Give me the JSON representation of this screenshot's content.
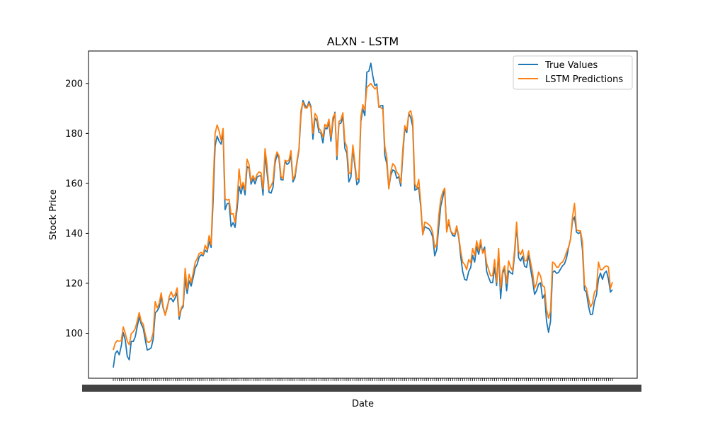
{
  "chart_data": {
    "type": "line",
    "title": "ALXN - LSTM",
    "xlabel": "Date",
    "ylabel": "Stock Price",
    "ylim": [
      82,
      213
    ],
    "yticks": [
      100,
      120,
      140,
      160,
      180,
      200
    ],
    "grid": false,
    "legend_position": "top-right",
    "x_tick_labels_unreadable": true,
    "series": [
      {
        "name": "True Values",
        "color": "#1f77b4",
        "values": [
          86.3,
          91.9,
          93.0,
          91.4,
          94.9,
          100.3,
          97.3,
          90.8,
          89.4,
          96.8,
          96.7,
          98.6,
          102.7,
          106.6,
          103.7,
          102.0,
          97.5,
          93.3,
          93.6,
          94.2,
          97.7,
          108.1,
          109.0,
          110.4,
          114.6,
          110.0,
          107.5,
          110.6,
          113.6,
          114.0,
          112.6,
          114.2,
          116.2,
          105.6,
          109.6,
          110.6,
          122.0,
          115.9,
          121.0,
          118.9,
          122.2,
          126.1,
          127.6,
          130.5,
          131.4,
          131.0,
          133.3,
          132.5,
          136.9,
          134.4,
          153.1,
          175.0,
          178.9,
          176.9,
          175.7,
          180.6,
          149.5,
          151.8,
          152.1,
          142.7,
          144.3,
          142.4,
          149.8,
          158.8,
          155.8,
          159.7,
          155.4,
          166.8,
          166.1,
          159.7,
          161.9,
          159.8,
          162.5,
          163.0,
          163.0,
          155.3,
          171.8,
          164.4,
          156.5,
          156.1,
          158.4,
          167.9,
          171.8,
          169.9,
          161.5,
          161.4,
          168.9,
          167.6,
          168.2,
          171.2,
          160.6,
          162.3,
          168.2,
          173.4,
          187.4,
          193.2,
          191.3,
          190.2,
          192.8,
          190.8,
          177.7,
          186.2,
          185.0,
          180.5,
          180.1,
          176.2,
          182.3,
          181.8,
          184.5,
          176.9,
          184.6,
          188.5,
          169.5,
          183.8,
          184.1,
          186.7,
          174.0,
          172.1,
          160.6,
          162.4,
          174.0,
          166.9,
          159.5,
          160.6,
          184.8,
          189.9,
          187.1,
          204.5,
          204.9,
          208.1,
          202.9,
          199.1,
          199.8,
          190.5,
          191.1,
          191.2,
          171.3,
          167.8,
          158.1,
          163.3,
          165.4,
          165.0,
          162.0,
          162.7,
          158.9,
          171.2,
          182.2,
          180.3,
          187.9,
          186.3,
          182.7,
          157.3,
          157.7,
          158.4,
          150.6,
          139.5,
          142.7,
          142.2,
          141.9,
          140.7,
          138.5,
          131.0,
          133.5,
          142.5,
          150.8,
          154.3,
          157.8,
          140.8,
          144.3,
          141.0,
          139.2,
          138.8,
          142.3,
          138.4,
          130.9,
          124.7,
          121.6,
          121.2,
          124.7,
          126.3,
          131.2,
          128.5,
          134.8,
          131.6,
          135.6,
          132.7,
          134.5,
          124.8,
          122.4,
          120.3,
          120.3,
          126.4,
          119.1,
          132.7,
          113.9,
          123.9,
          126.0,
          117.0,
          125.1,
          124.2,
          123.7,
          131.5,
          143.5,
          130.3,
          128.9,
          130.8,
          126.8,
          126.4,
          131.3,
          125.8,
          121.2,
          115.6,
          117.0,
          119.6,
          120.2,
          114.0,
          115.5,
          104.8,
          100.4,
          104.8,
          124.4,
          125.0,
          124.0,
          124.3,
          125.7,
          127.0,
          127.8,
          130.1,
          134.1,
          137.7,
          144.9,
          146.6,
          140.5,
          139.9,
          140.5,
          133.5,
          117.3,
          116.5,
          110.9,
          107.5,
          107.6,
          112.7,
          115.3,
          121.6,
          124.1,
          121.6,
          124.1,
          124.9,
          121.7,
          116.5,
          117.5
        ]
      },
      {
        "name": "LSTM Predictions",
        "color": "#ff7f0e",
        "values": [
          93.3,
          96.1,
          97.1,
          96.8,
          97.0,
          102.6,
          100.0,
          96.8,
          95.4,
          99.9,
          100.6,
          101.9,
          104.9,
          108.3,
          104.7,
          103.6,
          99.7,
          96.6,
          96.4,
          97.2,
          100.4,
          112.7,
          110.1,
          112.0,
          116.2,
          110.7,
          107.2,
          110.0,
          114.6,
          116.6,
          114.5,
          115.6,
          118.2,
          106.9,
          110.0,
          111.5,
          126.0,
          117.7,
          123.6,
          120.4,
          124.1,
          128.3,
          129.9,
          131.9,
          132.4,
          131.5,
          135.2,
          133.5,
          139.1,
          135.5,
          158.3,
          180.0,
          183.4,
          181.0,
          177.3,
          182.0,
          153.8,
          153.3,
          153.6,
          147.7,
          147.9,
          144.3,
          152.7,
          165.8,
          158.0,
          160.4,
          157.4,
          169.7,
          167.6,
          160.9,
          163.1,
          161.4,
          163.6,
          164.6,
          164.2,
          157.8,
          173.9,
          167.5,
          157.5,
          158.9,
          160.8,
          169.8,
          172.6,
          171.0,
          162.9,
          161.9,
          169.3,
          168.8,
          169.3,
          173.1,
          161.6,
          163.4,
          169.0,
          174.0,
          189.2,
          192.4,
          190.2,
          190.1,
          192.0,
          190.2,
          180.1,
          188.0,
          186.8,
          182.1,
          181.0,
          178.6,
          183.6,
          182.6,
          185.7,
          178.5,
          186.4,
          188.0,
          171.0,
          184.7,
          185.5,
          188.3,
          176.7,
          174.6,
          163.8,
          164.4,
          175.4,
          168.4,
          161.4,
          162.2,
          186.6,
          191.5,
          189.5,
          198.3,
          199.2,
          200.0,
          198.8,
          197.8,
          198.5,
          190.8,
          190.4,
          189.6,
          174.8,
          170.6,
          157.8,
          164.8,
          167.9,
          167.0,
          164.5,
          163.5,
          160.2,
          173.6,
          183.1,
          181.3,
          188.3,
          189.1,
          185.1,
          160.0,
          158.0,
          161.6,
          152.2,
          139.4,
          144.5,
          144.2,
          143.5,
          142.7,
          140.4,
          134.2,
          135.8,
          147.0,
          153.6,
          156.6,
          158.1,
          140.5,
          145.5,
          141.0,
          140.0,
          139.5,
          143.0,
          139.0,
          133.0,
          128.5,
          127.5,
          125.5,
          129.5,
          128.2,
          134.0,
          131.0,
          137.0,
          133.0,
          137.5,
          132.0,
          133.5,
          128.0,
          125.5,
          123.0,
          123.0,
          129.5,
          120.5,
          134.0,
          118.0,
          125.0,
          127.0,
          120.0,
          129.0,
          126.5,
          125.0,
          133.5,
          144.5,
          133.0,
          131.5,
          133.5,
          129.0,
          129.0,
          133.0,
          128.5,
          124.5,
          118.0,
          120.0,
          124.5,
          123.0,
          119.0,
          118.5,
          109.5,
          106.0,
          109.0,
          128.5,
          128.0,
          126.5,
          126.5,
          128.0,
          128.5,
          130.0,
          132.5,
          134.5,
          137.5,
          146.5,
          152.0,
          141.5,
          141.0,
          141.0,
          136.5,
          119.5,
          118.0,
          114.0,
          110.5,
          112.0,
          116.5,
          117.5,
          128.5,
          125.5,
          125.5,
          126.5,
          127.0,
          126.5,
          118.0,
          120.5
        ]
      }
    ]
  }
}
